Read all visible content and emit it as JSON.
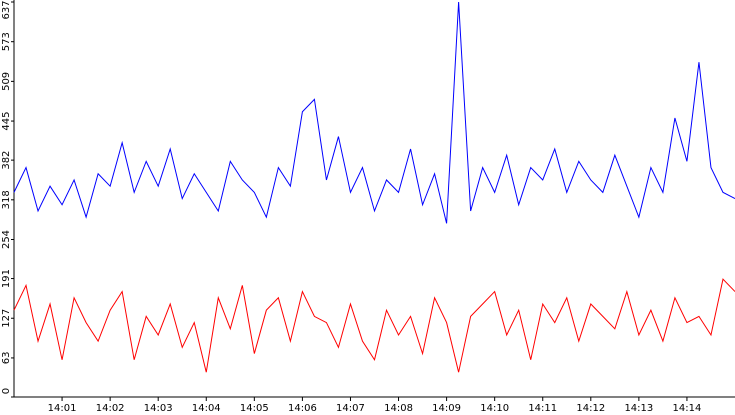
{
  "chart_data": {
    "type": "line",
    "x": [
      840,
      840.25,
      840.5,
      840.75,
      841,
      841.25,
      841.5,
      841.75,
      842,
      842.25,
      842.5,
      842.75,
      843,
      843.25,
      843.5,
      843.75,
      844,
      844.25,
      844.5,
      844.75,
      845,
      845.25,
      845.5,
      845.75,
      846,
      846.25,
      846.5,
      846.75,
      847,
      847.25,
      847.5,
      847.75,
      848,
      848.25,
      848.5,
      848.75,
      849,
      849.25,
      849.5,
      849.75,
      850,
      850.25,
      850.5,
      850.75,
      851,
      851.25,
      851.5,
      851.75,
      852,
      852.25,
      852.5,
      852.75,
      853,
      853.25,
      853.5,
      853.75,
      854,
      854.25,
      854.5,
      854.75,
      855
    ],
    "series": [
      {
        "color": "#0000ff",
        "values": [
          330,
          370,
          300,
          340,
          310,
          350,
          290,
          360,
          340,
          410,
          330,
          380,
          340,
          400,
          320,
          360,
          330,
          300,
          380,
          350,
          330,
          290,
          370,
          340,
          460,
          480,
          350,
          420,
          330,
          370,
          300,
          350,
          330,
          400,
          310,
          360,
          280,
          637,
          300,
          370,
          330,
          390,
          310,
          370,
          350,
          400,
          330,
          380,
          350,
          330,
          390,
          340,
          290,
          370,
          330,
          450,
          380,
          540,
          370,
          330,
          320
        ]
      },
      {
        "color": "#ff0000",
        "values": [
          140,
          180,
          90,
          150,
          60,
          160,
          120,
          90,
          140,
          170,
          60,
          130,
          100,
          150,
          80,
          120,
          40,
          160,
          110,
          180,
          70,
          140,
          160,
          90,
          170,
          130,
          120,
          80,
          150,
          90,
          60,
          140,
          100,
          130,
          70,
          160,
          120,
          40,
          130,
          150,
          170,
          100,
          140,
          60,
          150,
          120,
          160,
          90,
          150,
          130,
          110,
          170,
          100,
          140,
          90,
          160,
          120,
          130,
          100,
          190,
          170
        ]
      }
    ],
    "xlim": [
      840,
      855
    ],
    "xticks": [
      {
        "value": 841,
        "label": "14:01"
      },
      {
        "value": 842,
        "label": "14:02"
      },
      {
        "value": 843,
        "label": "14:03"
      },
      {
        "value": 844,
        "label": "14:04"
      },
      {
        "value": 845,
        "label": "14:05"
      },
      {
        "value": 846,
        "label": "14:06"
      },
      {
        "value": 847,
        "label": "14:07"
      },
      {
        "value": 848,
        "label": "14:08"
      },
      {
        "value": 849,
        "label": "14:09"
      },
      {
        "value": 850,
        "label": "14:10"
      },
      {
        "value": 851,
        "label": "14:11"
      },
      {
        "value": 852,
        "label": "14:12"
      },
      {
        "value": 853,
        "label": "14:13"
      },
      {
        "value": 854,
        "label": "14:14"
      }
    ],
    "ylim": [
      0,
      637
    ],
    "yticks": [
      0,
      63,
      127,
      191,
      254,
      318,
      382,
      445,
      509,
      573,
      637
    ]
  }
}
